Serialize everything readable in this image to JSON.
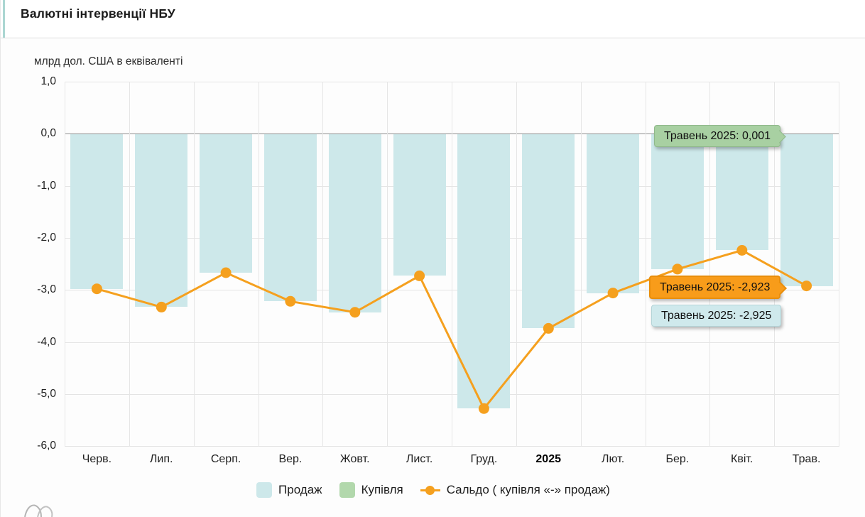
{
  "header": {
    "title": "Валютні інтервенції НБУ"
  },
  "chart": {
    "units_label": "млрд дол. США в еквіваленті"
  },
  "chart_data": {
    "type": "bar",
    "subtype": "bars-with-line-overlay",
    "title": "Валютні інтервенції НБУ",
    "ylabel": "млрд дол. США в еквіваленті",
    "categories": [
      "Черв.",
      "Лип.",
      "Серп.",
      "Вер.",
      "Жовт.",
      "Лист.",
      "Груд.",
      "2025",
      "Лют.",
      "Бер.",
      "Квіт.",
      "Трав."
    ],
    "bold_category": "2025",
    "y_tick_labels": [
      "1,0",
      "0,0",
      "-1,0",
      "-2,0",
      "-3,0",
      "-4,0",
      "-5,0",
      "-6,0"
    ],
    "y_tick_values": [
      1,
      0,
      -1,
      -2,
      -3,
      -4,
      -5,
      -6
    ],
    "ylim": [
      -6,
      1
    ],
    "grid": true,
    "legend_position": "bottom",
    "series": [
      {
        "name": "Продаж",
        "type": "bar",
        "color": "#cde8ea",
        "values": [
          -2.98,
          -3.33,
          -2.67,
          -3.22,
          -3.43,
          -2.73,
          -5.28,
          -3.74,
          -3.06,
          -2.6,
          -2.24,
          -2.925
        ]
      },
      {
        "name": "Купівля",
        "type": "bar",
        "color": "#b2d8ac",
        "values": [
          null,
          null,
          null,
          null,
          null,
          null,
          null,
          null,
          null,
          null,
          null,
          0.001
        ]
      },
      {
        "name": "Сальдо ( купівля «-» продаж)",
        "type": "line",
        "color": "#f5a01e",
        "values": [
          -2.98,
          -3.33,
          -2.67,
          -3.22,
          -3.43,
          -2.73,
          -5.28,
          -3.74,
          -3.06,
          -2.6,
          -2.24,
          -2.923
        ]
      }
    ]
  },
  "tooltips": {
    "kupivlia": {
      "text": "Травень 2025: 0,001"
    },
    "saldo": {
      "text": "Травень 2025: -2,923"
    },
    "prodazh": {
      "text": "Травень 2025: -2,925"
    }
  },
  "legend": {
    "items": [
      {
        "label": "Продаж",
        "color": "#cde8ea"
      },
      {
        "label": "Купівля",
        "color": "#b2d8ac"
      },
      {
        "label": "Сальдо ( купівля «-» продаж)",
        "color": "#f5a01e"
      }
    ]
  }
}
